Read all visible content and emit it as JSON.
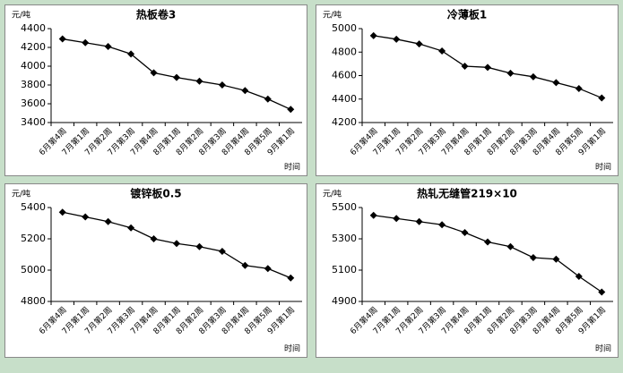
{
  "chart_data": [
    {
      "type": "line",
      "title": "热板卷3",
      "y_label": "元/吨",
      "x_label": "时间",
      "color": "#000000",
      "categories": [
        "6月第4周",
        "7月第1周",
        "7月第2周",
        "7月第3周",
        "7月第4周",
        "8月第1周",
        "8月第2周",
        "8月第3周",
        "8月第4周",
        "8月第5周",
        "9月第1周"
      ],
      "values": [
        4290,
        4250,
        4210,
        4130,
        3930,
        3880,
        3840,
        3800,
        3740,
        3650,
        3540
      ],
      "ylim": [
        3400,
        4400
      ],
      "yticks": [
        3400,
        3600,
        3800,
        4000,
        4200,
        4400
      ]
    },
    {
      "type": "line",
      "title": "冷薄板1",
      "y_label": "元/吨",
      "x_label": "时间",
      "color": "#000000",
      "categories": [
        "6月第4周",
        "7月第1周",
        "7月第2周",
        "7月第3周",
        "7月第4周",
        "8月第1周",
        "8月第2周",
        "8月第3周",
        "8月第4周",
        "8月第5周",
        "9月第1周"
      ],
      "values": [
        4940,
        4910,
        4870,
        4810,
        4680,
        4670,
        4620,
        4590,
        4540,
        4490,
        4410
      ],
      "ylim": [
        4200,
        5000
      ],
      "yticks": [
        4200,
        4400,
        4600,
        4800,
        5000
      ]
    },
    {
      "type": "line",
      "title": "镀锌板0.5",
      "y_label": "元/吨",
      "x_label": "时间",
      "color": "#000000",
      "categories": [
        "6月第4周",
        "7月第1周",
        "7月第2周",
        "7月第3周",
        "7月第4周",
        "8月第1周",
        "8月第2周",
        "8月第3周",
        "8月第4周",
        "8月第5周",
        "9月第1周"
      ],
      "values": [
        5370,
        5340,
        5310,
        5270,
        5200,
        5170,
        5150,
        5120,
        5030,
        5010,
        4950
      ],
      "ylim": [
        4800,
        5400
      ],
      "yticks": [
        4800,
        5000,
        5200,
        5400
      ]
    },
    {
      "type": "line",
      "title": "热轧无缝管219×10",
      "y_label": "元/吨",
      "x_label": "时间",
      "color": "#000000",
      "categories": [
        "6月第4周",
        "7月第1周",
        "7月第2周",
        "7月第3周",
        "7月第4周",
        "8月第1周",
        "8月第2周",
        "8月第3周",
        "8月第4周",
        "8月第5周",
        "9月第1周"
      ],
      "values": [
        5450,
        5430,
        5410,
        5390,
        5340,
        5280,
        5250,
        5180,
        5170,
        5060,
        4960
      ],
      "ylim": [
        4900,
        5500
      ],
      "yticks": [
        4900,
        5100,
        5300,
        5500
      ]
    }
  ]
}
